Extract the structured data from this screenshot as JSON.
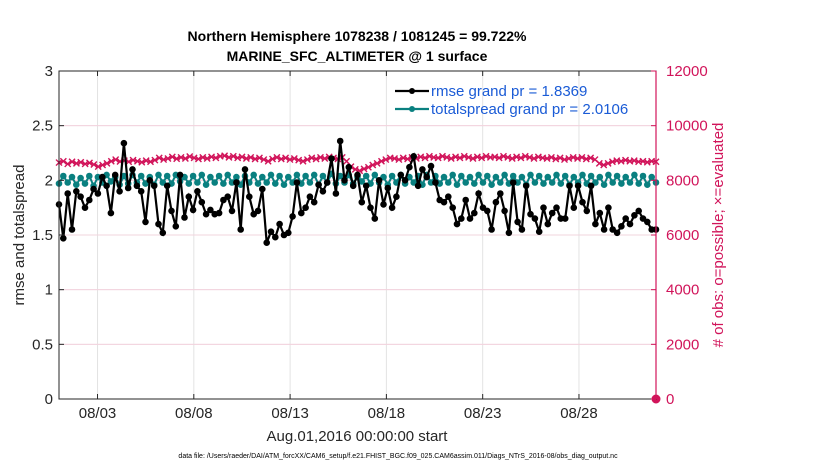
{
  "chart_data": {
    "type": "line",
    "title_line1": "Northern Hemisphere 1078238 / 1081245 = 99.722%",
    "title_line2": "MARINE_SFC_ALTIMETER @ 1 surface",
    "xlabel": "Aug.01,2016 00:00:00 start",
    "ylabel_left": "rmse and totalspread",
    "ylabel_right": "# of obs: o=possible; ×=evaluated",
    "footer": "data file: /Users/raeder/DAI/ATM_forcXX/CAM6_setup/f.e21.FHIST_BGC.f09_025.CAM6assim.011/Diags_NTrS_2016-08/obs_diag_output.nc",
    "x_ticks": [
      "08/03",
      "08/08",
      "08/13",
      "08/18",
      "08/23",
      "08/28"
    ],
    "x_tick_days": [
      3,
      8,
      13,
      18,
      23,
      28
    ],
    "xlim_days": [
      1,
      32
    ],
    "ylim_left": [
      0,
      3
    ],
    "y_ticks_left": [
      "0",
      "0.5",
      "1",
      "1.5",
      "2",
      "2.5",
      "3"
    ],
    "ylim_right": [
      0,
      12000
    ],
    "y_ticks_right": [
      "0",
      "2000",
      "4000",
      "6000",
      "8000",
      "10000",
      "12000"
    ],
    "grid": true,
    "legend_position": "top-right",
    "colors": {
      "rmse": "#000000",
      "spread": "#0a8080",
      "obs": "#d1145a",
      "legend_text": "#1a5bd6",
      "right_axis": "#d1145a"
    },
    "series": [
      {
        "name": "rmse grand pr = 1.8369",
        "key": "rmse",
        "values": [
          1.78,
          1.47,
          1.88,
          1.55,
          1.9,
          1.85,
          1.75,
          1.82,
          1.92,
          1.88,
          2.03,
          1.95,
          1.7,
          2.05,
          1.9,
          2.34,
          1.93,
          2.1,
          1.95,
          1.9,
          1.62,
          2.0,
          1.95,
          1.6,
          1.52,
          1.95,
          1.72,
          1.58,
          2.05,
          1.66,
          1.85,
          1.73,
          1.9,
          1.8,
          1.69,
          1.73,
          1.69,
          1.7,
          1.82,
          1.85,
          1.72,
          1.98,
          1.55,
          2.1,
          1.85,
          1.69,
          1.72,
          1.92,
          1.43,
          1.53,
          1.48,
          1.6,
          1.5,
          1.52,
          1.67,
          1.98,
          1.7,
          1.75,
          1.85,
          1.8,
          1.96,
          1.9,
          1.98,
          2.2,
          1.88,
          2.36,
          2.0,
          2.12,
          1.95,
          2.05,
          1.8,
          1.95,
          1.75,
          1.65,
          2.0,
          1.78,
          1.93,
          1.75,
          1.85,
          2.05,
          2.0,
          2.12,
          2.22,
          1.95,
          2.1,
          2.03,
          2.13,
          1.98,
          1.82,
          1.8,
          1.85,
          1.75,
          1.6,
          1.65,
          1.82,
          1.65,
          1.7,
          1.88,
          1.75,
          1.72,
          1.55,
          1.8,
          1.88,
          1.72,
          1.52,
          1.98,
          1.62,
          1.55,
          1.95,
          1.69,
          1.65,
          1.53,
          1.75,
          1.6,
          1.7,
          1.75,
          1.65,
          1.65,
          1.95,
          1.75,
          1.95,
          1.8,
          1.72,
          1.95,
          1.6,
          1.7,
          1.55,
          1.75,
          1.55,
          1.52,
          1.58,
          1.65,
          1.6,
          1.68,
          1.72,
          1.65,
          1.62,
          1.55,
          1.55
        ]
      },
      {
        "name": "totalspread grand pr = 2.0106",
        "key": "spread",
        "values": [
          1.97,
          2.04,
          1.98,
          2.03,
          1.96,
          2.02,
          1.97,
          2.04,
          1.95,
          2.03,
          1.98,
          2.05,
          1.99,
          2.03,
          1.96,
          2.04,
          1.97,
          2.05,
          1.98,
          2.04,
          1.97,
          2.03,
          1.96,
          2.05,
          1.98,
          2.04,
          1.97,
          2.05,
          1.99,
          2.03,
          1.97,
          2.04,
          1.98,
          2.05,
          1.96,
          2.03,
          1.98,
          2.04,
          1.97,
          2.05,
          1.98,
          2.03,
          1.96,
          2.04,
          1.98,
          2.05,
          1.97,
          2.03,
          1.98,
          2.05,
          1.97,
          2.04,
          1.96,
          2.03,
          1.98,
          2.05,
          1.97,
          2.04,
          1.98,
          2.05,
          1.96,
          2.04,
          1.98,
          2.06,
          1.97,
          2.04,
          1.98,
          2.05,
          1.97,
          2.03,
          1.99,
          2.04,
          1.97,
          2.05,
          1.98,
          2.03,
          1.96,
          2.04,
          1.98,
          2.05,
          1.97,
          2.03,
          1.98,
          2.04,
          1.96,
          2.05,
          1.98,
          2.04,
          1.97,
          2.03,
          1.98,
          2.05,
          1.96,
          2.04,
          1.98,
          2.03,
          1.97,
          2.05,
          1.98,
          2.04,
          1.96,
          2.03,
          1.98,
          2.05,
          1.97,
          2.04,
          1.98,
          2.03,
          1.96,
          2.05,
          1.98,
          2.04,
          1.97,
          2.03,
          1.98,
          2.05,
          1.97,
          2.04,
          1.96,
          2.03,
          1.98,
          2.05,
          1.97,
          2.04,
          1.98,
          2.03,
          1.96,
          2.05,
          1.98,
          2.04,
          1.97,
          2.03,
          1.98,
          2.05,
          1.97,
          2.04,
          1.96,
          2.03,
          1.98
        ]
      },
      {
        "name": "observations evaluated",
        "key": "obs",
        "values": [
          8650,
          8700,
          8600,
          8680,
          8620,
          8660,
          8600,
          8640,
          8580,
          8500,
          8560,
          8620,
          8700,
          8760,
          8690,
          8720,
          8680,
          8740,
          8700,
          8660,
          8720,
          8680,
          8740,
          8820,
          8760,
          8800,
          8860,
          8790,
          8840,
          8800,
          8870,
          8820,
          8780,
          8840,
          8800,
          8860,
          8820,
          8880,
          8900,
          8840,
          8880,
          8820,
          8860,
          8800,
          8840,
          8780,
          8820,
          8760,
          8700,
          8780,
          8840,
          8780,
          8820,
          8760,
          8800,
          8740,
          8700,
          8760,
          8820,
          8780,
          8840,
          8800,
          8860,
          8820,
          8780,
          8840,
          8700,
          8500,
          8400,
          8350,
          8420,
          8480,
          8560,
          8620,
          8700,
          8760,
          8820,
          8800,
          8760,
          8820,
          8780,
          8840,
          8800,
          8860,
          8820,
          8880,
          8840,
          8820,
          8880,
          8840,
          8800,
          8860,
          8820,
          8880,
          8840,
          8800,
          8860,
          8820,
          8880,
          8840,
          8860,
          8820,
          8880,
          8840,
          8800,
          8860,
          8820,
          8880,
          8840,
          8800,
          8860,
          8820,
          8800,
          8840,
          8780,
          8820,
          8760,
          8800,
          8840,
          8800,
          8840,
          8780,
          8820,
          8760,
          8620,
          8560,
          8620,
          8680,
          8720,
          8700,
          8740,
          8700,
          8720,
          8680,
          8700,
          8660,
          8700,
          8680
        ]
      }
    ],
    "possible_point": {
      "day": 32,
      "value": 0
    }
  }
}
